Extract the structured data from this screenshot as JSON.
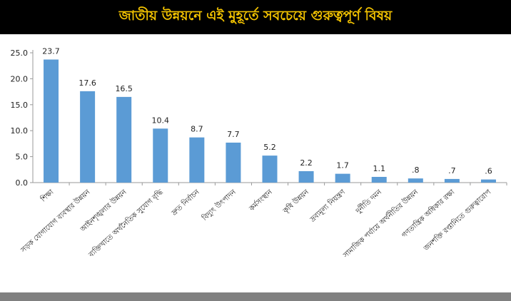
{
  "header": {
    "title": "জাতীয় উন্নয়নে এই মুহূর্তে সবচেয়ে গুরুত্বপূর্ণ বিষয়"
  },
  "colors": {
    "header_bg": "#000000",
    "header_text": "#f2c200",
    "bar": "#5b9bd5",
    "axis": "#999999",
    "footer": "#808080"
  },
  "chart_data": {
    "type": "bar",
    "title": "",
    "xlabel": "",
    "ylabel": "",
    "ylim": [
      0,
      25
    ],
    "grid": false,
    "yticks": [
      "0.0",
      "5.0",
      "10.0",
      "15.0",
      "20.0",
      "25.0"
    ],
    "categories": [
      "শিক্ষা",
      "সড়ক যোগাযোগ ব্যবস্থার উন্নয়ন",
      "আইনশৃঙ্খলার উন্নয়ন",
      "ব্যক্তিখাতে অর্থনৈতিক সুযোগ বৃদ্ধি",
      "দ্রুত নির্বাচন",
      "বিদ্যুৎ উৎপাদন",
      "কর্মসংস্থান",
      "কৃষি উন্নয়ন",
      "দ্রব্যমূল্য নিয়ন্ত্রণ",
      "দুর্নীতি দমন",
      "সামাজিক পর্যায়ে অর্থনীতির উন্নয়ন",
      "গণতান্ত্রিক অধিকার রক্ষা",
      "জনশক্তি রপ্তানিতে গুরুত্বারোপ"
    ],
    "values": [
      23.7,
      17.6,
      16.5,
      10.4,
      8.7,
      7.7,
      5.2,
      2.2,
      1.7,
      1.1,
      0.8,
      0.7,
      0.6
    ],
    "value_labels": [
      "23.7",
      "17.6",
      "16.5",
      "10.4",
      "8.7",
      "7.7",
      "5.2",
      "2.2",
      "1.7",
      "1.1",
      ".8",
      ".7",
      ".6"
    ]
  }
}
